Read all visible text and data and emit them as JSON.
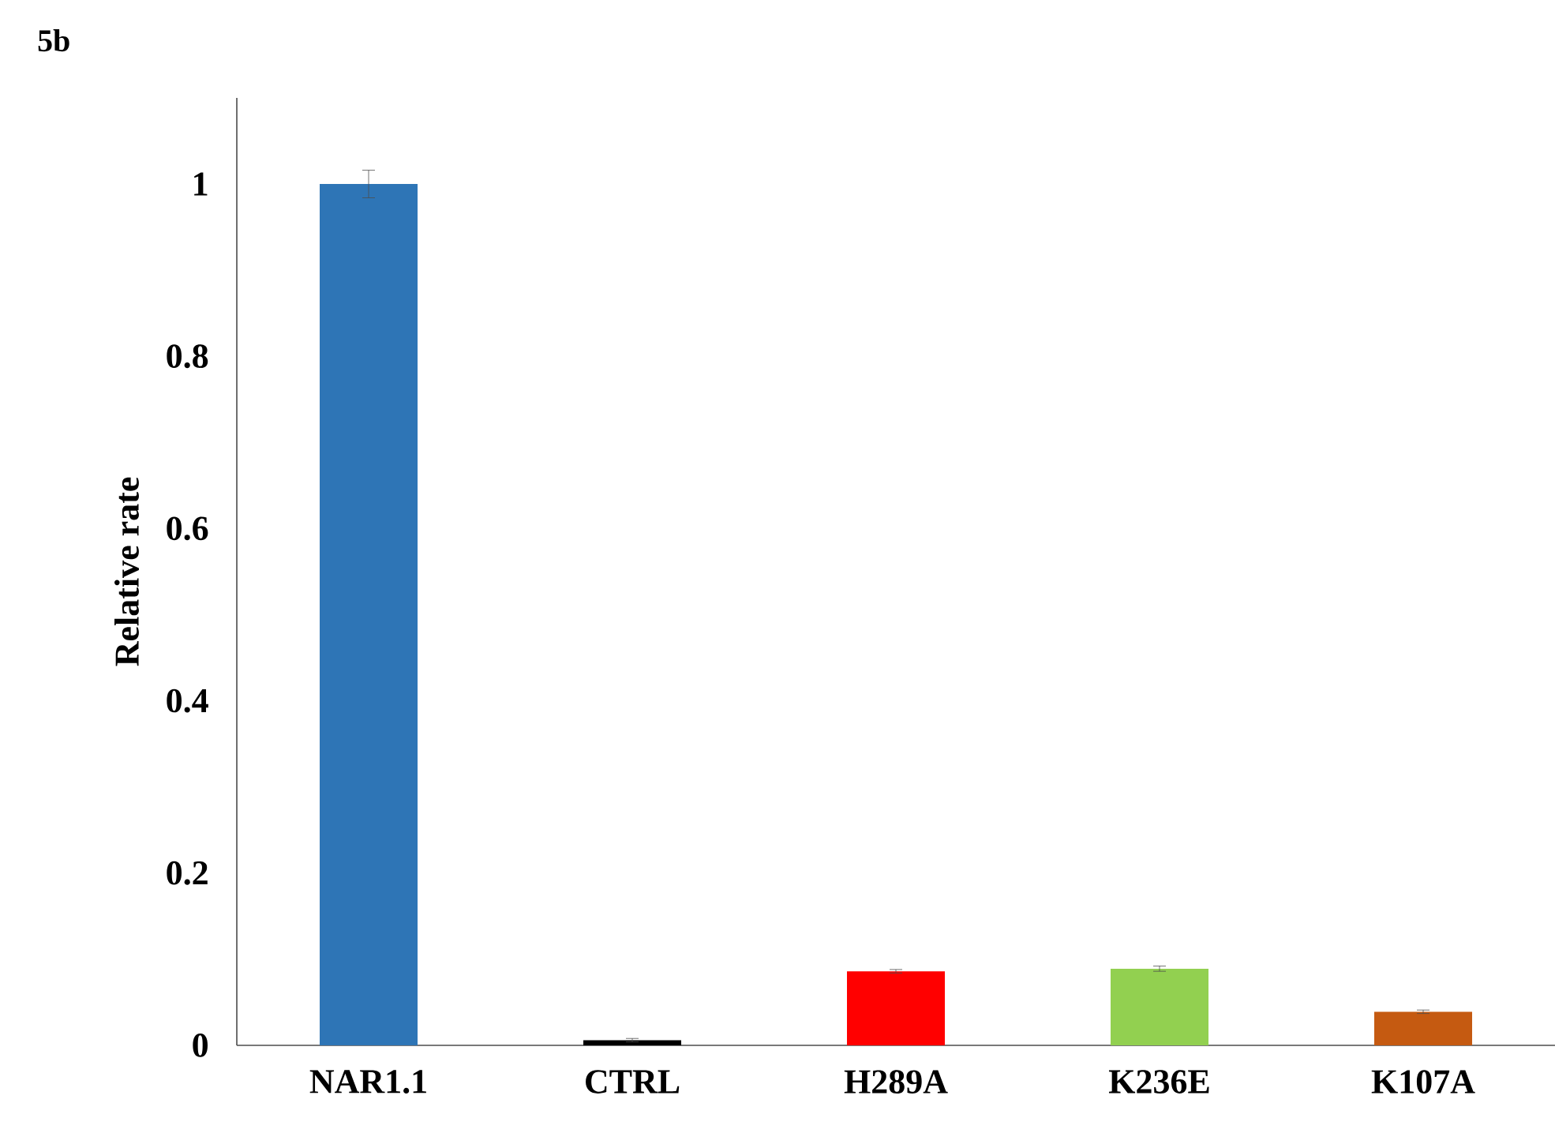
{
  "chart_data": {
    "type": "bar",
    "title": "5b",
    "ylabel": "Relative rate",
    "categories": [
      "NAR1.1",
      "CTRL",
      "H289A",
      "K236E",
      "K107A"
    ],
    "values": [
      1.0,
      0.006,
      0.086,
      0.089,
      0.039
    ],
    "errors": [
      0.016,
      0.002,
      0.002,
      0.003,
      0.002
    ],
    "colors": [
      "#2e75b6",
      "#000000",
      "#ff0000",
      "#92d050",
      "#c55a11"
    ],
    "ylim": [
      0,
      1.1
    ],
    "yticks": [
      0,
      0.2,
      0.4,
      0.6,
      0.8,
      1
    ]
  }
}
